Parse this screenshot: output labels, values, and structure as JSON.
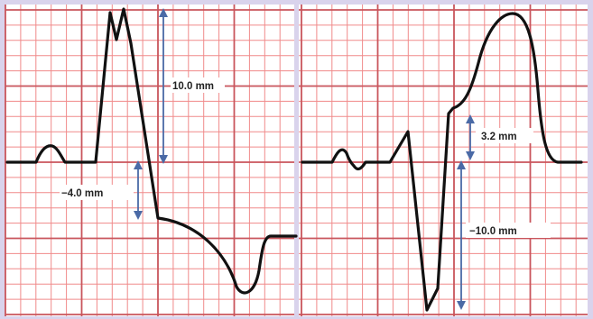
{
  "left_panel": {
    "st_elevation_label": "10.0 mm",
    "st_depression_label": "−4.0 mm"
  },
  "right_panel": {
    "st_elevation_label": "3.2 mm",
    "st_depression_label": "−10.0 mm"
  },
  "colors": {
    "page_background": "#d9d3ec",
    "grid_minor": "#f08a8a",
    "grid_major": "#c9555c",
    "trace": "#111111",
    "measurement_arrow": "#4a6aa6"
  }
}
